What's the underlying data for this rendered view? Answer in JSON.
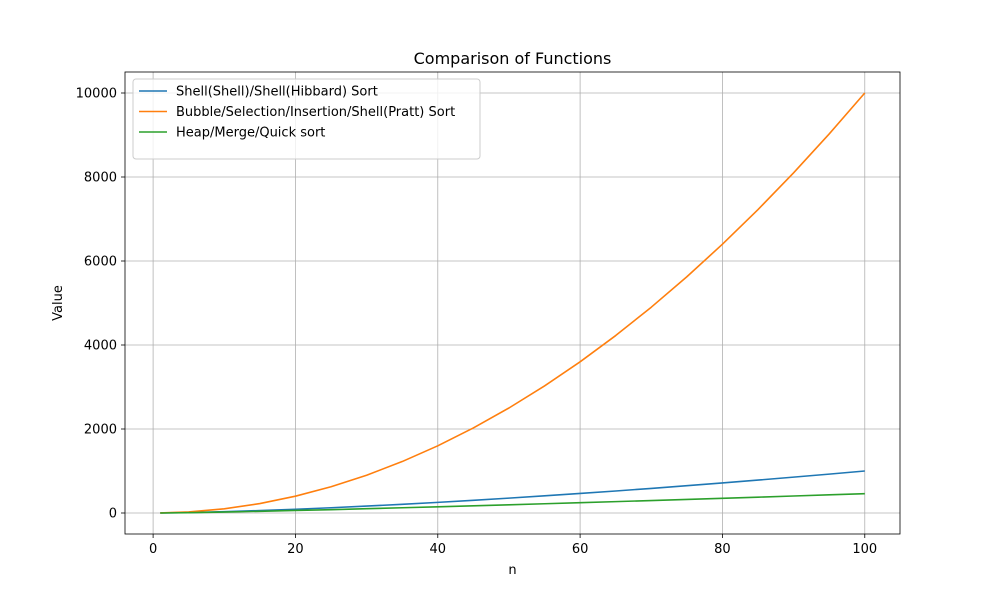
{
  "chart_data": {
    "type": "line",
    "title": "Comparison of Functions",
    "xlabel": "n",
    "ylabel": "Value",
    "xlim": [
      -3.95,
      104.95
    ],
    "ylim": [
      -500,
      10500
    ],
    "xticks": [
      0,
      20,
      40,
      60,
      80,
      100
    ],
    "yticks": [
      0,
      2000,
      4000,
      6000,
      8000,
      10000
    ],
    "grid": true,
    "legend_position": "top-left",
    "x": [
      1,
      5,
      10,
      15,
      20,
      25,
      30,
      35,
      40,
      45,
      50,
      55,
      60,
      65,
      70,
      75,
      80,
      85,
      90,
      95,
      100
    ],
    "series": [
      {
        "name": "Shell(Shell)/Shell(Hibbard) Sort",
        "color": "#1f77b4",
        "values": [
          1,
          11,
          32,
          58,
          89,
          125,
          164,
          207,
          253,
          302,
          354,
          408,
          465,
          524,
          586,
          650,
          716,
          784,
          854,
          926,
          1000
        ]
      },
      {
        "name": "Bubble/Selection/Insertion/Shell(Pratt) Sort",
        "color": "#ff7f0e",
        "values": [
          1,
          25,
          100,
          225,
          400,
          625,
          900,
          1225,
          1600,
          2025,
          2500,
          3025,
          3600,
          4225,
          4900,
          5625,
          6400,
          7225,
          8100,
          9025,
          10000
        ]
      },
      {
        "name": "Heap/Merge/Quick sort",
        "color": "#2ca02c",
        "values": [
          0,
          8,
          23,
          41,
          60,
          80,
          102,
          125,
          148,
          171,
          196,
          220,
          246,
          271,
          297,
          323,
          350,
          377,
          405,
          432,
          461
        ]
      }
    ]
  }
}
